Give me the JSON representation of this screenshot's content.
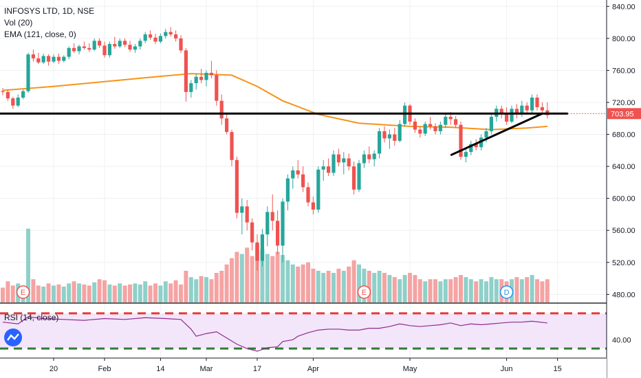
{
  "header": {
    "symbol": "INFOSYS LTD, 1D, NSE",
    "vol_label": "Vol (20)",
    "ema_label": "EMA (121, close, 0)",
    "rsi_label": "RSI (14, close)"
  },
  "colors": {
    "up": "#26a69a",
    "down": "#ef5350",
    "up_vol": "#8fd0c9",
    "down_vol": "#f5a3a3",
    "ema": "#f7931a",
    "rsi": "#8e2c8c",
    "rsi_band": "#f3e5fa",
    "rsi_upper": "#e53935",
    "rsi_lower": "#2e7d32",
    "price_tag": "#ef5350"
  },
  "last_price": "703.95",
  "events": [
    "E",
    "E",
    "D"
  ],
  "chart_data": {
    "type": "candlestick",
    "ylim": [
      470,
      848
    ],
    "y_ticks": [
      "840.00",
      "800.00",
      "760.00",
      "720.00",
      "680.00",
      "640.00",
      "600.00",
      "560.00",
      "520.00",
      "480.00"
    ],
    "x_ticks": [
      "20",
      "Feb",
      "14",
      "Mar",
      "17",
      "Apr",
      "May",
      "Jun",
      "15"
    ],
    "rsi_ticks": [
      "40.00"
    ],
    "rsi_range": [
      20,
      80
    ],
    "rsi_band": [
      30,
      70
    ],
    "candles": [
      [
        734,
        738,
        729,
        733
      ],
      [
        733,
        736,
        722,
        725
      ],
      [
        725,
        727,
        712,
        716
      ],
      [
        716,
        730,
        714,
        726
      ],
      [
        726,
        736,
        724,
        734
      ],
      [
        734,
        782,
        732,
        780
      ],
      [
        780,
        786,
        771,
        775
      ],
      [
        775,
        782,
        768,
        770
      ],
      [
        770,
        781,
        768,
        778
      ],
      [
        778,
        780,
        766,
        771
      ],
      [
        771,
        780,
        769,
        777
      ],
      [
        777,
        781,
        768,
        772
      ],
      [
        772,
        779,
        770,
        777
      ],
      [
        777,
        790,
        774,
        788
      ],
      [
        788,
        794,
        782,
        784
      ],
      [
        784,
        792,
        780,
        790
      ],
      [
        790,
        796,
        786,
        788
      ],
      [
        788,
        794,
        783,
        786
      ],
      [
        786,
        800,
        784,
        797
      ],
      [
        797,
        800,
        788,
        791
      ],
      [
        791,
        796,
        776,
        779
      ],
      [
        779,
        796,
        776,
        793
      ],
      [
        793,
        802,
        787,
        790
      ],
      [
        790,
        800,
        788,
        797
      ],
      [
        797,
        800,
        789,
        792
      ],
      [
        792,
        797,
        783,
        786
      ],
      [
        786,
        793,
        782,
        790
      ],
      [
        790,
        800,
        786,
        797
      ],
      [
        797,
        808,
        794,
        805
      ],
      [
        805,
        810,
        798,
        801
      ],
      [
        801,
        806,
        793,
        796
      ],
      [
        796,
        806,
        794,
        803
      ],
      [
        803,
        812,
        800,
        808
      ],
      [
        808,
        814,
        802,
        805
      ],
      [
        805,
        810,
        796,
        800
      ],
      [
        800,
        804,
        782,
        785
      ],
      [
        785,
        788,
        721,
        733
      ],
      [
        733,
        748,
        726,
        744
      ],
      [
        744,
        756,
        736,
        752
      ],
      [
        752,
        762,
        744,
        748
      ],
      [
        748,
        760,
        740,
        757
      ],
      [
        757,
        772,
        750,
        754
      ],
      [
        754,
        760,
        716,
        722
      ],
      [
        722,
        730,
        692,
        700
      ],
      [
        700,
        705,
        680,
        683
      ],
      [
        683,
        686,
        640,
        648
      ],
      [
        648,
        652,
        575,
        582
      ],
      [
        582,
        600,
        555,
        590
      ],
      [
        590,
        598,
        560,
        570
      ],
      [
        570,
        575,
        535,
        545
      ],
      [
        545,
        555,
        510,
        522
      ],
      [
        522,
        562,
        515,
        555
      ],
      [
        555,
        590,
        540,
        583
      ],
      [
        583,
        605,
        560,
        572
      ],
      [
        572,
        585,
        530,
        541
      ],
      [
        541,
        600,
        520,
        596
      ],
      [
        596,
        630,
        585,
        625
      ],
      [
        625,
        640,
        612,
        635
      ],
      [
        635,
        648,
        625,
        630
      ],
      [
        630,
        640,
        608,
        614
      ],
      [
        614,
        620,
        590,
        595
      ],
      [
        595,
        602,
        580,
        586
      ],
      [
        586,
        640,
        582,
        636
      ],
      [
        636,
        648,
        622,
        640
      ],
      [
        640,
        650,
        628,
        632
      ],
      [
        632,
        660,
        628,
        655
      ],
      [
        655,
        662,
        640,
        645
      ],
      [
        645,
        658,
        630,
        650
      ],
      [
        650,
        656,
        635,
        640
      ],
      [
        640,
        646,
        605,
        611
      ],
      [
        611,
        648,
        608,
        644
      ],
      [
        644,
        660,
        638,
        655
      ],
      [
        655,
        665,
        644,
        649
      ],
      [
        649,
        660,
        640,
        656
      ],
      [
        656,
        688,
        650,
        684
      ],
      [
        684,
        690,
        670,
        675
      ],
      [
        675,
        686,
        662,
        680
      ],
      [
        680,
        688,
        666,
        672
      ],
      [
        672,
        698,
        670,
        693
      ],
      [
        693,
        720,
        690,
        716
      ],
      [
        716,
        718,
        692,
        696
      ],
      [
        696,
        700,
        682,
        686
      ],
      [
        686,
        690,
        676,
        681
      ],
      [
        681,
        696,
        678,
        693
      ],
      [
        693,
        702,
        686,
        690
      ],
      [
        690,
        694,
        680,
        684
      ],
      [
        684,
        696,
        680,
        692
      ],
      [
        692,
        706,
        688,
        702
      ],
      [
        702,
        708,
        692,
        699
      ],
      [
        699,
        703,
        688,
        692
      ],
      [
        692,
        696,
        648,
        652
      ],
      [
        652,
        662,
        645,
        658
      ],
      [
        658,
        672,
        654,
        668
      ],
      [
        668,
        674,
        660,
        664
      ],
      [
        664,
        680,
        660,
        676
      ],
      [
        676,
        688,
        670,
        684
      ],
      [
        684,
        706,
        680,
        702
      ],
      [
        702,
        716,
        696,
        712
      ],
      [
        712,
        716,
        700,
        706
      ],
      [
        706,
        714,
        692,
        696
      ],
      [
        696,
        716,
        694,
        712
      ],
      [
        712,
        718,
        700,
        706
      ],
      [
        706,
        722,
        702,
        716
      ],
      [
        716,
        720,
        706,
        710
      ],
      [
        710,
        730,
        706,
        726
      ],
      [
        726,
        730,
        710,
        714
      ],
      [
        714,
        720,
        706,
        710
      ],
      [
        710,
        720,
        700,
        704
      ]
    ],
    "volume": [
      14,
      20,
      16,
      18,
      12,
      70,
      22,
      16,
      15,
      18,
      16,
      17,
      15,
      18,
      20,
      18,
      17,
      16,
      19,
      22,
      21,
      17,
      16,
      18,
      16,
      17,
      18,
      17,
      20,
      16,
      18,
      16,
      20,
      18,
      21,
      17,
      30,
      24,
      22,
      25,
      24,
      22,
      28,
      30,
      36,
      42,
      48,
      46,
      52,
      44,
      55,
      50,
      46,
      44,
      48,
      45,
      40,
      36,
      34,
      36,
      38,
      32,
      30,
      28,
      30,
      28,
      32,
      30,
      34,
      40,
      36,
      32,
      30,
      28,
      30,
      28,
      26,
      24,
      22,
      26,
      28,
      26,
      22,
      20,
      22,
      22,
      20,
      22,
      22,
      24,
      26,
      24,
      22,
      20,
      22,
      20,
      24,
      22,
      22,
      20,
      22,
      24,
      22,
      24,
      26,
      22,
      20,
      22
    ],
    "ema": [
      [
        0,
        735
      ],
      [
        10,
        740
      ],
      [
        20,
        746
      ],
      [
        30,
        752
      ],
      [
        37,
        756
      ],
      [
        45,
        754
      ],
      [
        50,
        740
      ],
      [
        55,
        722
      ],
      [
        62,
        705
      ],
      [
        70,
        694
      ],
      [
        80,
        690
      ],
      [
        88,
        689
      ],
      [
        96,
        686
      ],
      [
        103,
        688
      ],
      [
        107,
        690
      ]
    ],
    "rsi": [
      [
        0,
        60
      ],
      [
        3,
        58
      ],
      [
        5,
        66
      ],
      [
        8,
        64
      ],
      [
        12,
        63
      ],
      [
        16,
        62
      ],
      [
        20,
        64
      ],
      [
        24,
        63
      ],
      [
        28,
        65
      ],
      [
        32,
        64
      ],
      [
        35,
        63
      ],
      [
        37,
        52
      ],
      [
        38,
        44
      ],
      [
        40,
        47
      ],
      [
        42,
        49
      ],
      [
        44,
        42
      ],
      [
        46,
        35
      ],
      [
        48,
        30
      ],
      [
        50,
        27
      ],
      [
        52,
        31
      ],
      [
        54,
        32
      ],
      [
        55,
        38
      ],
      [
        57,
        40
      ],
      [
        58,
        44
      ],
      [
        60,
        48
      ],
      [
        62,
        51
      ],
      [
        64,
        52
      ],
      [
        66,
        52
      ],
      [
        68,
        51
      ],
      [
        70,
        51
      ],
      [
        72,
        53
      ],
      [
        74,
        53
      ],
      [
        76,
        55
      ],
      [
        78,
        58
      ],
      [
        80,
        56
      ],
      [
        82,
        55
      ],
      [
        84,
        56
      ],
      [
        86,
        57
      ],
      [
        88,
        59
      ],
      [
        90,
        56
      ],
      [
        92,
        58
      ],
      [
        94,
        57
      ],
      [
        96,
        58
      ],
      [
        98,
        59
      ],
      [
        100,
        60
      ],
      [
        102,
        60
      ],
      [
        104,
        61
      ],
      [
        107,
        59
      ]
    ],
    "support_line": {
      "y": 706
    },
    "trend_line": [
      [
        88,
        654
      ],
      [
        106,
        706
      ]
    ]
  }
}
